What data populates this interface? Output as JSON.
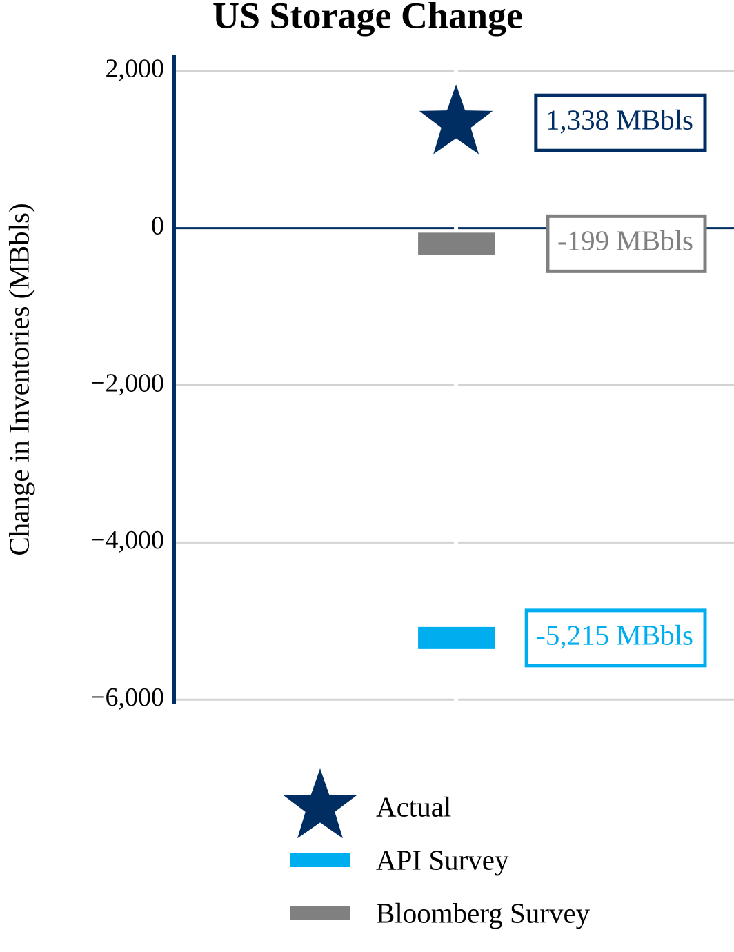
{
  "chart_data": {
    "type": "scatter",
    "title": "US Storage Change",
    "y_label": "Change in Inventories (MBbls)",
    "categories": [
      null
    ],
    "series": [
      {
        "name": "Actual",
        "color": "#002d62",
        "marker": "star",
        "values": [
          1338
        ],
        "value_labels": [
          "1,338 MBbls"
        ]
      },
      {
        "name": "API Survey",
        "color": "#00aeef",
        "marker": "dash",
        "values": [
          -5215
        ],
        "value_labels": [
          "-5,215 MBbls"
        ]
      },
      {
        "name": "Bloomberg Survey",
        "color": "#808080",
        "marker": "dash",
        "values": [
          -199
        ],
        "value_labels": [
          "-199 MBbls"
        ]
      }
    ],
    "ylim": [
      -6050,
      2200
    ],
    "yticks": [
      {
        "value": 2000,
        "label": "2,000"
      },
      0,
      {
        "value": -2000,
        "label": "−2,000"
      },
      {
        "value": -4000,
        "label": "−4,000"
      },
      {
        "value": -6000,
        "label": "−6,000"
      }
    ],
    "grid": true,
    "legend": "bottom"
  }
}
